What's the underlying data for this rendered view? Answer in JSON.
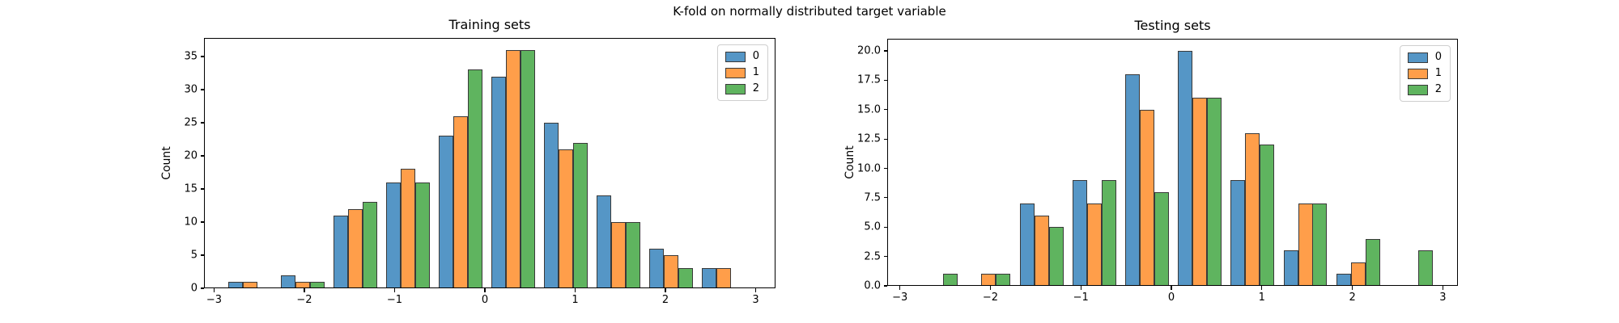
{
  "figure": {
    "suptitle": "K-fold on normally distributed target variable",
    "background": "#ffffff",
    "fold_colors": [
      "#5596c6",
      "#ff9e4a",
      "#5fb45f"
    ],
    "bar_edge_color": "#3a3a3a",
    "legend_labels": [
      "0",
      "1",
      "2"
    ]
  },
  "chart_data": [
    {
      "type": "bar",
      "subtype": "dodged-histogram",
      "title": "Training sets",
      "xlabel": "",
      "ylabel": "Count",
      "grid": false,
      "legend_position": "upper right",
      "legend_entries": [
        "0",
        "1",
        "2"
      ],
      "xlim": [
        -3.112,
        3.22
      ],
      "ylim": [
        0,
        37.8
      ],
      "xticks": [
        -3,
        -2,
        -1,
        0,
        1,
        2,
        3
      ],
      "xticklabels": [
        "−3",
        "−2",
        "−1",
        "0",
        "1",
        "2",
        "3"
      ],
      "yticks": [
        0,
        5,
        10,
        15,
        20,
        25,
        30,
        35
      ],
      "yticklabels": [
        "0",
        "5",
        "10",
        "15",
        "20",
        "25",
        "30",
        "35"
      ],
      "bin_start": -2.893,
      "bin_width": 0.583,
      "series": [
        {
          "name": "0",
          "values": [
            1,
            2,
            11,
            16,
            23,
            32,
            25,
            14,
            6,
            3
          ]
        },
        {
          "name": "1",
          "values": [
            1,
            1,
            12,
            18,
            26,
            36,
            21,
            10,
            5,
            3
          ]
        },
        {
          "name": "2",
          "values": [
            0,
            1,
            13,
            16,
            33,
            36,
            22,
            10,
            3,
            0
          ]
        }
      ]
    },
    {
      "type": "bar",
      "subtype": "dodged-histogram",
      "title": "Testing sets",
      "xlabel": "",
      "ylabel": "Count",
      "grid": false,
      "legend_position": "upper right",
      "legend_entries": [
        "0",
        "1",
        "2"
      ],
      "xlim": [
        -3.14,
        3.166
      ],
      "ylim": [
        0,
        21.03
      ],
      "xticks": [
        -3,
        -2,
        -1,
        0,
        1,
        2,
        3
      ],
      "xticklabels": [
        "−3",
        "−2",
        "−1",
        "0",
        "1",
        "2",
        "3"
      ],
      "yticks": [
        0,
        2.5,
        5,
        7.5,
        10,
        12.5,
        15,
        17.5,
        20
      ],
      "yticklabels": [
        "0.0",
        "2.5",
        "5.0",
        "7.5",
        "10.0",
        "12.5",
        "15.0",
        "17.5",
        "20.0"
      ],
      "bin_start": -2.893,
      "bin_width": 0.583,
      "series": [
        {
          "name": "0",
          "values": [
            0,
            0,
            7,
            9,
            18,
            20,
            9,
            3,
            1,
            0
          ]
        },
        {
          "name": "1",
          "values": [
            0,
            1,
            6,
            7,
            15,
            16,
            13,
            7,
            2,
            0
          ]
        },
        {
          "name": "2",
          "values": [
            1,
            1,
            5,
            9,
            8,
            16,
            12,
            7,
            4,
            3
          ]
        }
      ]
    }
  ]
}
